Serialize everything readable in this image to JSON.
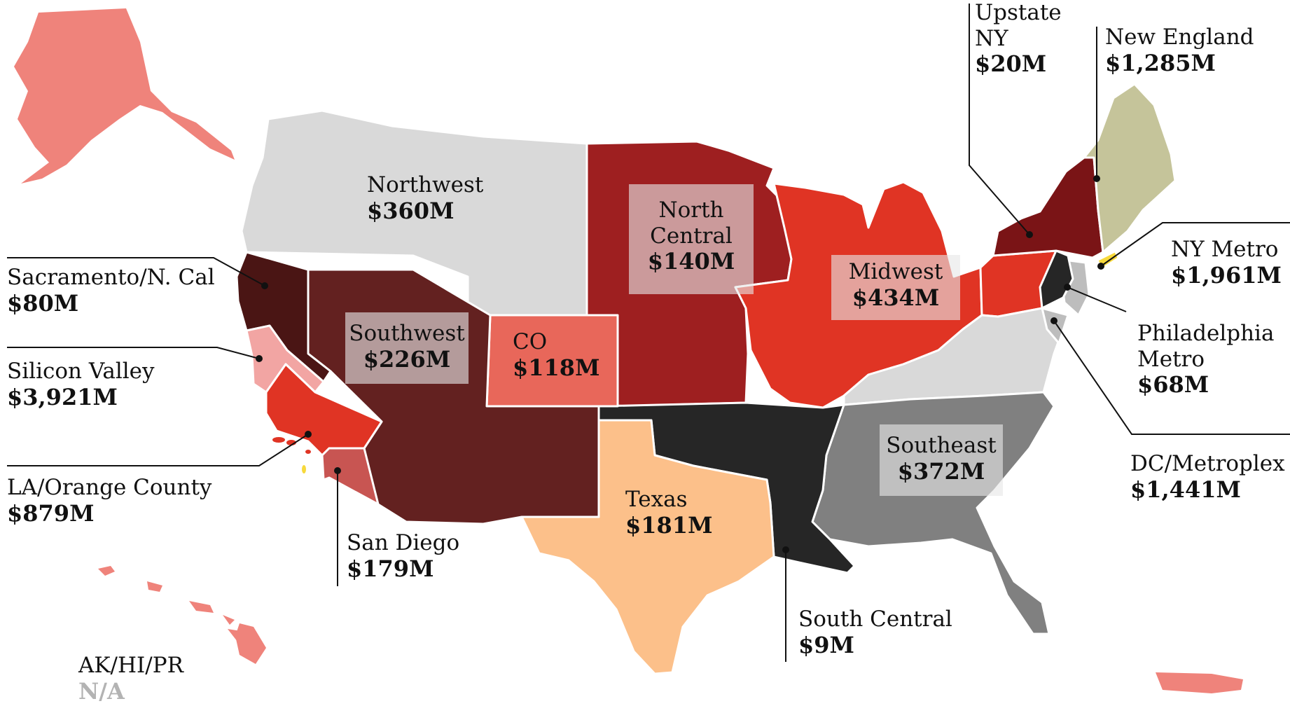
{
  "regions": [
    {
      "id": "northwest",
      "name": "Northwest",
      "value": "$360M",
      "color": "#d9d9d9"
    },
    {
      "id": "north-central",
      "name": "North Central",
      "line1": "North",
      "line2": "Central",
      "value": "$140M",
      "color": "#9e1f20"
    },
    {
      "id": "midwest",
      "name": "Midwest",
      "value": "$434M",
      "color": "#e03424"
    },
    {
      "id": "southwest",
      "name": "Southwest",
      "value": "$226M",
      "color": "#632120"
    },
    {
      "id": "co",
      "name": "CO",
      "value": "$118M",
      "color": "#e8675a"
    },
    {
      "id": "texas",
      "name": "Texas",
      "value": "$181M",
      "color": "#fcc08a"
    },
    {
      "id": "southeast",
      "name": "Southeast",
      "value": "$372M",
      "color": "#808080"
    },
    {
      "id": "south-central",
      "name": "South Central",
      "value": "$9M",
      "color": "#262626"
    },
    {
      "id": "sacramento",
      "name": "Sacramento/N. Cal",
      "value": "$80M",
      "color": "#4a1514"
    },
    {
      "id": "silicon-valley",
      "name": "Silicon Valley",
      "value": "$3,921M",
      "color": "#f2a5a3"
    },
    {
      "id": "la-orange",
      "name": "LA/Orange County",
      "value": "$879M",
      "color": "#e03424"
    },
    {
      "id": "san-diego",
      "name": "San Diego",
      "value": "$179M",
      "color": "#c85552"
    },
    {
      "id": "upstate-ny",
      "name": "Upstate NY",
      "line1": "Upstate",
      "line2": "NY",
      "value": "$20M",
      "color": "#7a1416"
    },
    {
      "id": "new-england",
      "name": "New England",
      "value": "$1,285M",
      "color": "#c5c49a"
    },
    {
      "id": "ny-metro",
      "name": "NY Metro",
      "value": "$1,961M",
      "color": "#f7d93c"
    },
    {
      "id": "philadelphia",
      "name": "Philadelphia Metro",
      "line1": "Philadelphia",
      "line2": "Metro",
      "value": "$68M",
      "color": "#262626"
    },
    {
      "id": "dc-metroplex",
      "name": "DC/Metroplex",
      "value": "$1,441M",
      "color": "#bdbdbd"
    },
    {
      "id": "ak-hi-pr",
      "name": "AK/HI/PR",
      "value": "N/A",
      "color": "#ef837b"
    }
  ],
  "other_colors": {
    "mid_atlantic_south": "#d9d9d9",
    "nj": "#bdbdbd",
    "pennsylvania": "#e03424"
  }
}
